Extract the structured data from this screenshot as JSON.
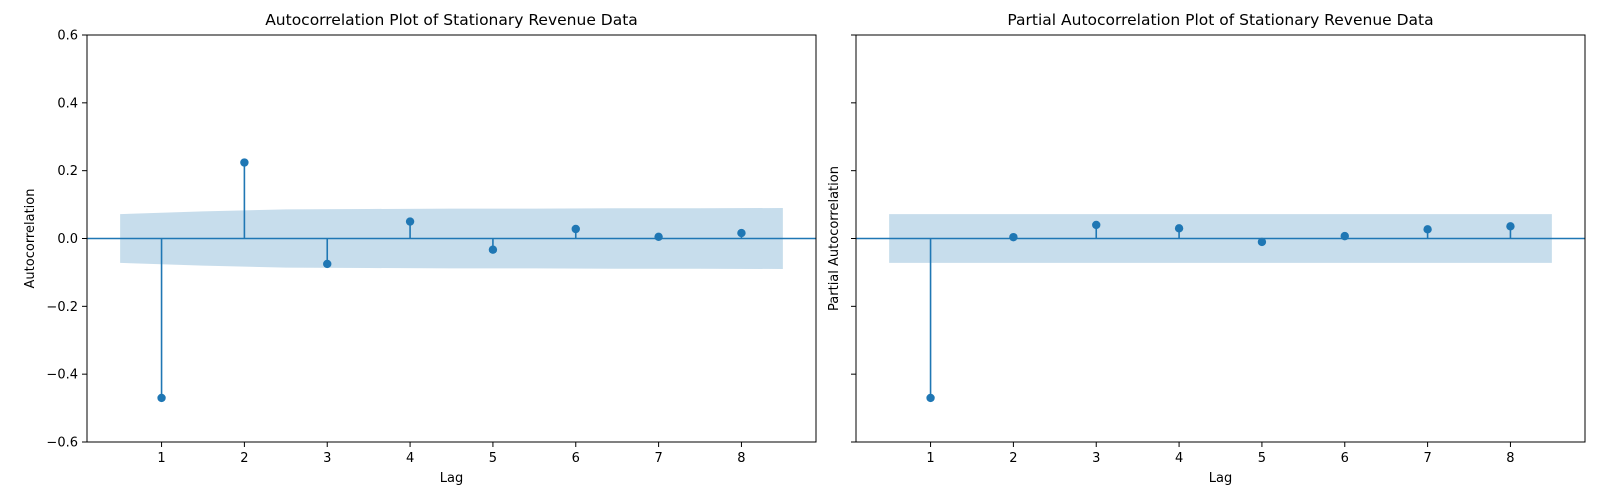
{
  "chart_data": [
    {
      "type": "stem",
      "title": "Autocorrelation Plot of Stationary Revenue Data",
      "xlabel": "Lag",
      "ylabel": "Autocorrelation",
      "xlim": [
        0.1,
        8.9
      ],
      "ylim": [
        -0.6,
        0.6
      ],
      "x_ticks": [
        "1",
        "2",
        "3",
        "4",
        "5",
        "6",
        "7",
        "8"
      ],
      "y_ticks": [
        "0.6",
        "0.4",
        "0.2",
        "0.0",
        "−0.2",
        "−0.4",
        "−0.6"
      ],
      "y_tick_labels_shown": true,
      "series": [
        {
          "x": [
            1,
            2,
            3,
            4,
            5,
            6,
            7,
            8
          ],
          "values": [
            -0.47,
            0.224,
            -0.075,
            0.05,
            -0.033,
            0.028,
            0.005,
            0.016
          ]
        }
      ],
      "confidence_band": {
        "x": [
          0.5,
          1.5,
          2.5,
          3.5,
          4.5,
          5.5,
          6.5,
          7.5,
          8.5
        ],
        "upper": [
          0.072,
          0.08,
          0.086,
          0.087,
          0.088,
          0.088,
          0.089,
          0.089,
          0.09
        ],
        "lower": [
          -0.072,
          -0.08,
          -0.086,
          -0.087,
          -0.088,
          -0.088,
          -0.089,
          -0.089,
          -0.09
        ]
      },
      "grid": false,
      "colors": {
        "stem": "#1f77b4",
        "band": "#1f77b4",
        "band_opacity": 0.25
      }
    },
    {
      "type": "stem",
      "title": "Partial Autocorrelation Plot of Stationary Revenue Data",
      "xlabel": "Lag",
      "ylabel": "Partial Autocorrelation",
      "xlim": [
        0.1,
        8.9
      ],
      "ylim": [
        -0.6,
        0.6
      ],
      "x_ticks": [
        "1",
        "2",
        "3",
        "4",
        "5",
        "6",
        "7",
        "8"
      ],
      "y_ticks": [
        "0.6",
        "0.4",
        "0.2",
        "0.0",
        "−0.2",
        "−0.4",
        "−0.6"
      ],
      "y_tick_labels_shown": false,
      "series": [
        {
          "x": [
            1,
            2,
            3,
            4,
            5,
            6,
            7,
            8
          ],
          "values": [
            -0.47,
            0.004,
            0.04,
            0.03,
            -0.01,
            0.007,
            0.027,
            0.036
          ]
        }
      ],
      "confidence_band": {
        "x": [
          0.5,
          8.5
        ],
        "upper": [
          0.072,
          0.072
        ],
        "lower": [
          -0.072,
          -0.072
        ]
      },
      "grid": false,
      "colors": {
        "stem": "#1f77b4",
        "band": "#1f77b4",
        "band_opacity": 0.25
      }
    }
  ]
}
